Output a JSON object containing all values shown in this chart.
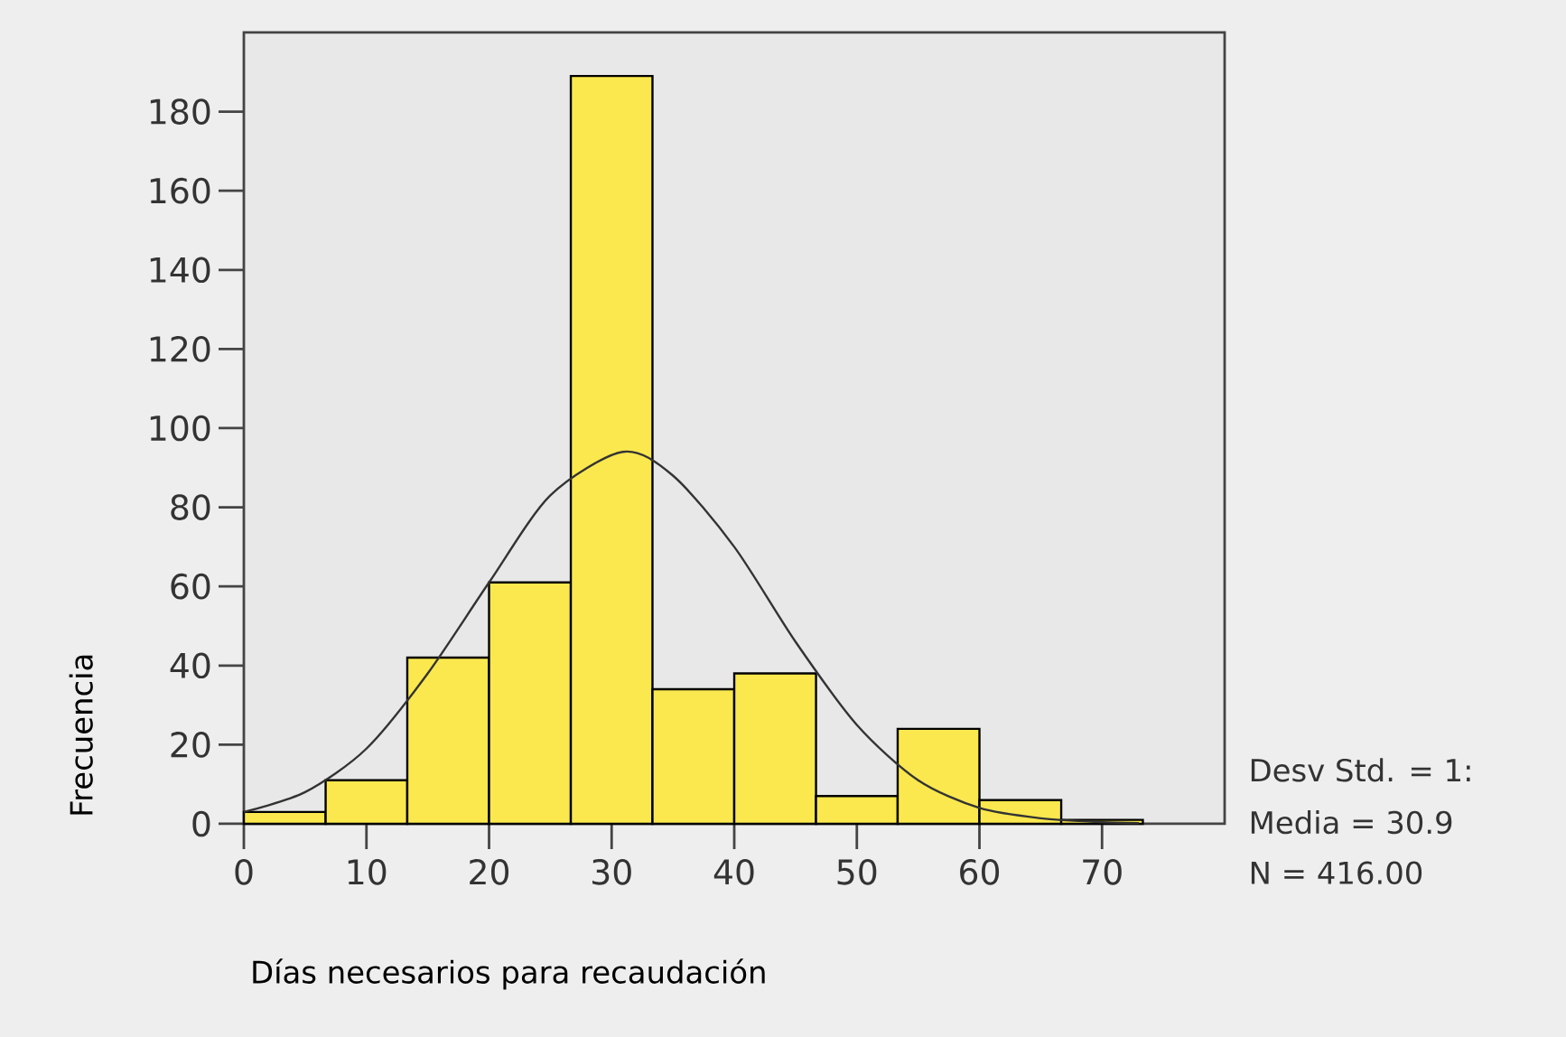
{
  "chart_data": {
    "type": "histogram",
    "xlabel": "Días necesarios para recaudación",
    "ylabel": "Frecuencia",
    "xlim": [
      0,
      80
    ],
    "ylim": [
      0,
      200
    ],
    "xticks": [
      0,
      10,
      20,
      30,
      40,
      50,
      60,
      70
    ],
    "yticks": [
      0,
      20,
      40,
      60,
      80,
      100,
      120,
      140,
      160,
      180
    ],
    "series": [
      {
        "color": "#fbe84e",
        "bins": [
          0,
          6.67,
          13.33,
          20,
          26.67,
          33.33,
          40,
          46.67,
          53.33,
          60,
          66.67,
          73.33
        ],
        "values": [
          3,
          11,
          42,
          61,
          189,
          34,
          38,
          7,
          24,
          6,
          1
        ]
      },
      {
        "type": "line",
        "color": "#333333",
        "x": [
          0,
          5,
          10,
          15,
          20,
          25,
          30.9,
          35,
          40,
          45,
          50,
          55,
          60,
          65,
          70,
          73
        ],
        "values": [
          3,
          8,
          19,
          38,
          61,
          83,
          94,
          88,
          70,
          46,
          25,
          11,
          4,
          1.4,
          0.4,
          0.2
        ]
      }
    ],
    "annotations": [
      "Desv Std. = 1:",
      "Media = 30.9",
      "N = 416.00"
    ]
  }
}
